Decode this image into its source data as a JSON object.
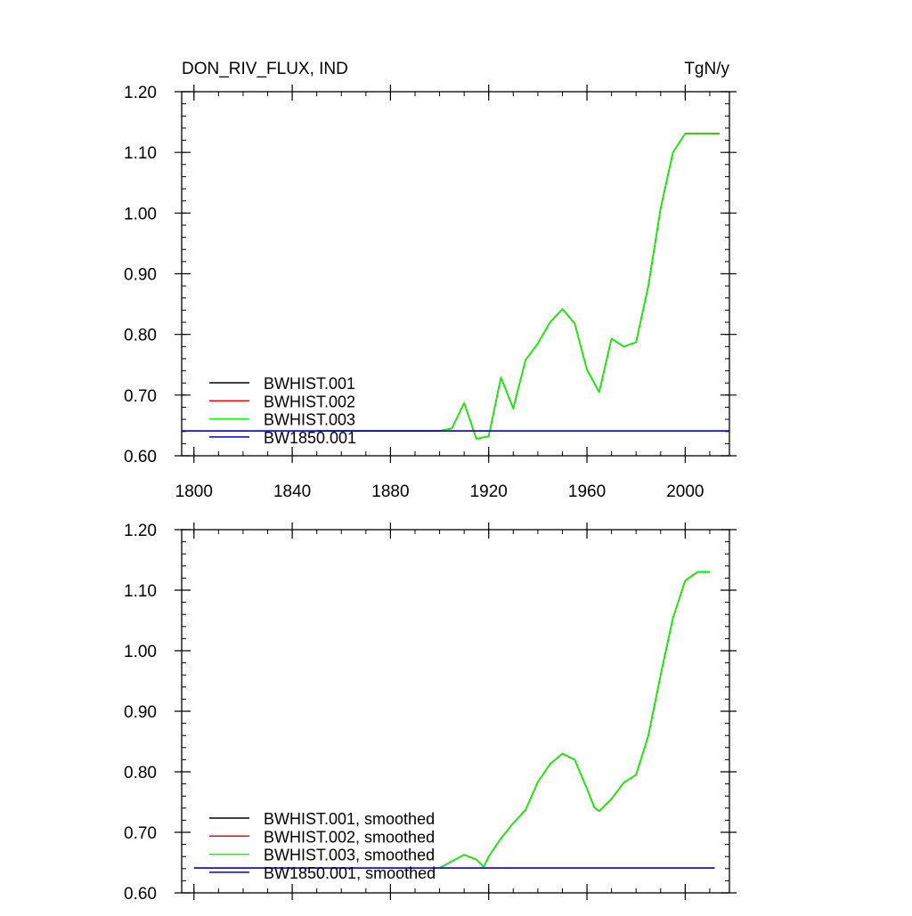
{
  "header": {
    "title_left": "DON_RIV_FLUX, IND",
    "title_right": "TgN/y"
  },
  "chart_data": [
    {
      "type": "line",
      "panel": "raw",
      "title": "DON_RIV_FLUX, IND",
      "units": "TgN/y",
      "xlim": [
        1795,
        2018
      ],
      "ylim": [
        0.6,
        1.2
      ],
      "xticks": [
        1800,
        1840,
        1880,
        1920,
        1960,
        2000
      ],
      "yticks": [
        0.6,
        0.7,
        0.8,
        0.9,
        1.0,
        1.1,
        1.2
      ],
      "ytick_labels": [
        "0.60",
        "0.70",
        "0.80",
        "0.90",
        "1.00",
        "1.10",
        "1.20"
      ],
      "xtick_labels": [
        "1800",
        "1840",
        "1880",
        "1920",
        "1960",
        "2000"
      ],
      "legend_position": "bottom-left",
      "series": [
        {
          "name": "BWHIST.001",
          "color": "#000000",
          "x": [
            1850,
            1900,
            1905,
            1910,
            1915,
            1920,
            1925,
            1930,
            1935,
            1940,
            1945,
            1950,
            1955,
            1960,
            1965,
            1970,
            1975,
            1980,
            1985,
            1990,
            1995,
            2000,
            2005,
            2014
          ],
          "y": [
            0.641,
            0.641,
            0.645,
            0.687,
            0.628,
            0.632,
            0.729,
            0.678,
            0.758,
            0.785,
            0.82,
            0.842,
            0.818,
            0.742,
            0.705,
            0.793,
            0.78,
            0.787,
            0.88,
            1.008,
            1.1,
            1.131,
            1.131,
            1.131
          ]
        },
        {
          "name": "BWHIST.002",
          "color": "#ff0000",
          "x": [
            1850,
            1900,
            1905,
            1910,
            1915,
            1920,
            1925,
            1930,
            1935,
            1940,
            1945,
            1950,
            1955,
            1960,
            1965,
            1970,
            1975,
            1980,
            1985,
            1990,
            1995,
            2000,
            2005,
            2014
          ],
          "y": [
            0.641,
            0.641,
            0.645,
            0.687,
            0.628,
            0.632,
            0.729,
            0.678,
            0.758,
            0.785,
            0.82,
            0.842,
            0.818,
            0.742,
            0.705,
            0.793,
            0.78,
            0.787,
            0.88,
            1.008,
            1.1,
            1.131,
            1.131,
            1.131
          ]
        },
        {
          "name": "BWHIST.003",
          "color": "#00ff00",
          "x": [
            1850,
            1900,
            1905,
            1910,
            1915,
            1920,
            1925,
            1930,
            1935,
            1940,
            1945,
            1950,
            1955,
            1960,
            1965,
            1970,
            1975,
            1980,
            1985,
            1990,
            1995,
            2000,
            2005,
            2014
          ],
          "y": [
            0.641,
            0.641,
            0.645,
            0.687,
            0.628,
            0.632,
            0.729,
            0.678,
            0.758,
            0.785,
            0.82,
            0.842,
            0.818,
            0.742,
            0.705,
            0.793,
            0.78,
            0.787,
            0.88,
            1.008,
            1.1,
            1.131,
            1.131,
            1.131
          ]
        },
        {
          "name": "BW1850.001",
          "color": "#0000cc",
          "x": [
            1795,
            2018
          ],
          "y": [
            0.641,
            0.641
          ]
        }
      ]
    },
    {
      "type": "line",
      "panel": "smoothed",
      "xlim": [
        1795,
        2018
      ],
      "ylim": [
        0.6,
        1.2
      ],
      "xticks": [
        1800,
        1840,
        1880,
        1920,
        1960,
        2000
      ],
      "yticks": [
        0.6,
        0.7,
        0.8,
        0.9,
        1.0,
        1.1,
        1.2
      ],
      "ytick_labels": [
        "0.60",
        "0.70",
        "0.80",
        "0.90",
        "1.00",
        "1.10",
        "1.20"
      ],
      "legend_position": "bottom-left",
      "series": [
        {
          "name": "BWHIST.001, smoothed",
          "color": "#000000",
          "x": [
            1900,
            1905,
            1910,
            1915,
            1918,
            1920,
            1925,
            1930,
            1935,
            1940,
            1945,
            1950,
            1955,
            1960,
            1963,
            1965,
            1970,
            1975,
            1980,
            1985,
            1990,
            1995,
            2000,
            2005,
            2010
          ],
          "y": [
            0.641,
            0.652,
            0.663,
            0.655,
            0.643,
            0.66,
            0.69,
            0.715,
            0.737,
            0.783,
            0.813,
            0.83,
            0.82,
            0.772,
            0.741,
            0.735,
            0.755,
            0.782,
            0.795,
            0.86,
            0.96,
            1.054,
            1.116,
            1.13,
            1.13
          ]
        },
        {
          "name": "BWHIST.002, smoothed",
          "color": "#ff0000",
          "x": [
            1900,
            1905,
            1910,
            1915,
            1918,
            1920,
            1925,
            1930,
            1935,
            1940,
            1945,
            1950,
            1955,
            1960,
            1963,
            1965,
            1970,
            1975,
            1980,
            1985,
            1990,
            1995,
            2000,
            2005,
            2010
          ],
          "y": [
            0.641,
            0.652,
            0.663,
            0.655,
            0.643,
            0.66,
            0.69,
            0.715,
            0.737,
            0.783,
            0.813,
            0.83,
            0.82,
            0.772,
            0.741,
            0.735,
            0.755,
            0.782,
            0.795,
            0.86,
            0.96,
            1.054,
            1.116,
            1.13,
            1.13
          ]
        },
        {
          "name": "BWHIST.003, smoothed",
          "color": "#00ff00",
          "x": [
            1900,
            1905,
            1910,
            1915,
            1918,
            1920,
            1925,
            1930,
            1935,
            1940,
            1945,
            1950,
            1955,
            1960,
            1963,
            1965,
            1970,
            1975,
            1980,
            1985,
            1990,
            1995,
            2000,
            2005,
            2010
          ],
          "y": [
            0.641,
            0.652,
            0.663,
            0.655,
            0.643,
            0.66,
            0.69,
            0.715,
            0.737,
            0.783,
            0.813,
            0.83,
            0.82,
            0.772,
            0.741,
            0.735,
            0.755,
            0.782,
            0.795,
            0.86,
            0.96,
            1.054,
            1.116,
            1.13,
            1.13
          ]
        },
        {
          "name": "BW1850.001, smoothed",
          "color": "#0000cc",
          "x": [
            1800,
            2012
          ],
          "y": [
            0.641,
            0.641
          ]
        }
      ]
    }
  ]
}
